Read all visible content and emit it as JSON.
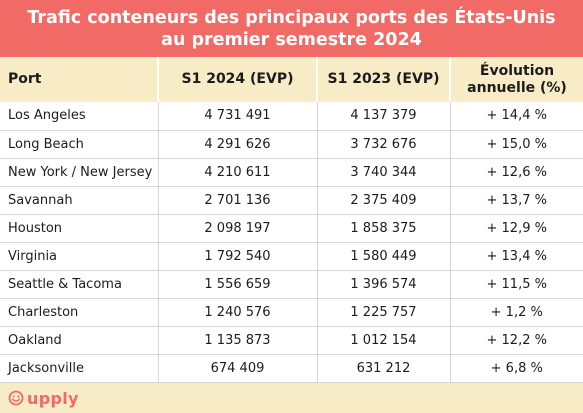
{
  "title": {
    "line1": "Trafic conteneurs des principaux ports des États-Unis",
    "line2": "au premier semestre 2024"
  },
  "table": {
    "headers": {
      "port": "Port",
      "s1_2024": "S1 2024 (EVP)",
      "s1_2023": "S1 2023 (EVP)",
      "evolution_line1": "Évolution",
      "evolution_line2": "annuelle (%)"
    },
    "rows": [
      {
        "port": "Los Angeles",
        "s1_2024": "4 731 491",
        "s1_2023": "4 137 379",
        "evolution": "+ 14,4 %"
      },
      {
        "port": "Long Beach",
        "s1_2024": "4 291 626",
        "s1_2023": "3 732 676",
        "evolution": "+ 15,0 %"
      },
      {
        "port": "New York / New Jersey",
        "s1_2024": "4 210 611",
        "s1_2023": "3 740 344",
        "evolution": "+ 12,6 %"
      },
      {
        "port": "Savannah",
        "s1_2024": "2 701 136",
        "s1_2023": "2 375 409",
        "evolution": "+ 13,7 %"
      },
      {
        "port": "Houston",
        "s1_2024": "2 098 197",
        "s1_2023": "1 858 375",
        "evolution": "+ 12,9 %"
      },
      {
        "port": "Virginia",
        "s1_2024": "1 792 540",
        "s1_2023": "1 580 449",
        "evolution": "+ 13,4 %"
      },
      {
        "port": "Seattle & Tacoma",
        "s1_2024": "1 556 659",
        "s1_2023": "1 396 574",
        "evolution": "+ 11,5 %"
      },
      {
        "port": "Charleston",
        "s1_2024": "1 240 576",
        "s1_2023": "1 225 757",
        "evolution": "+ 1,2 %"
      },
      {
        "port": "Oakland",
        "s1_2024": "1 135 873",
        "s1_2023": "1 012 154",
        "evolution": "+ 12,2 %"
      },
      {
        "port": "Jacksonville",
        "s1_2024": "674 409",
        "s1_2023": "631 212",
        "evolution": "+ 6,8 %"
      }
    ]
  },
  "footer": {
    "brand": "upply",
    "brand_icon": "upply-logo-icon"
  },
  "colors": {
    "accent": "#f26a65",
    "header_bg": "#f8ecc7"
  }
}
